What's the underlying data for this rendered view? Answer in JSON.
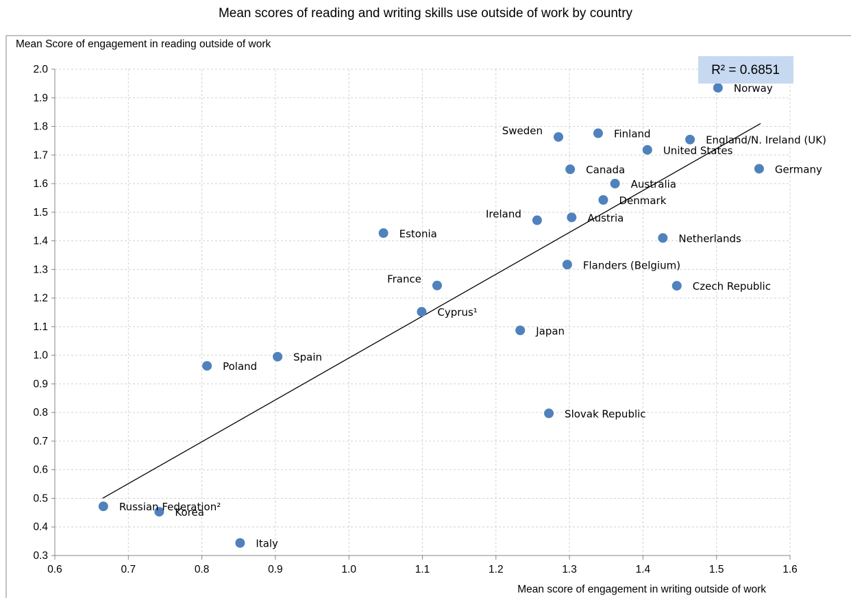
{
  "chart_data": {
    "type": "scatter",
    "title": "Mean scores of reading and writing skills use outside of work by country",
    "xlabel": "Mean score of engagement in  writing outside of work",
    "ylabel": "Mean Score of engagement in reading outside of work",
    "xlim": [
      0.6,
      1.6
    ],
    "ylim": [
      0.3,
      2.0
    ],
    "x_ticks": [
      "0.6",
      "0.7",
      "0.8",
      "0.9",
      "1.0",
      "1.1",
      "1.2",
      "1.3",
      "1.4",
      "1.5",
      "1.6"
    ],
    "y_ticks": [
      "0.3",
      "0.4",
      "0.5",
      "0.6",
      "0.7",
      "0.8",
      "0.9",
      "1.0",
      "1.1",
      "1.2",
      "1.3",
      "1.4",
      "1.5",
      "1.6",
      "1.7",
      "1.8",
      "1.9",
      "2.0"
    ],
    "grid": true,
    "point_color": "#4f81bd",
    "annotation": "R² = 0.6851",
    "trendline": {
      "x": [
        0.665,
        1.56
      ],
      "y": [
        0.5,
        1.81
      ]
    },
    "points": [
      {
        "label": "Norway",
        "x": 1.502,
        "y": 1.935,
        "label_pos": "right"
      },
      {
        "label": "Sweden",
        "x": 1.285,
        "y": 1.763,
        "label_pos": "left"
      },
      {
        "label": "Finland",
        "x": 1.339,
        "y": 1.776,
        "label_pos": "right"
      },
      {
        "label": "England/N. Ireland (UK)",
        "x": 1.464,
        "y": 1.754,
        "label_pos": "right"
      },
      {
        "label": "United States",
        "x": 1.406,
        "y": 1.718,
        "label_pos": "right"
      },
      {
        "label": "Canada",
        "x": 1.301,
        "y": 1.65,
        "label_pos": "right"
      },
      {
        "label": "Germany",
        "x": 1.558,
        "y": 1.652,
        "label_pos": "right"
      },
      {
        "label": "Australia",
        "x": 1.362,
        "y": 1.6,
        "label_pos": "right"
      },
      {
        "label": "Denmark",
        "x": 1.346,
        "y": 1.543,
        "label_pos": "right"
      },
      {
        "label": "Ireland",
        "x": 1.256,
        "y": 1.472,
        "label_pos": "left"
      },
      {
        "label": "Austria",
        "x": 1.303,
        "y": 1.482,
        "label_pos": "right"
      },
      {
        "label": "Estonia",
        "x": 1.047,
        "y": 1.427,
        "label_pos": "right"
      },
      {
        "label": "Netherlands",
        "x": 1.427,
        "y": 1.41,
        "label_pos": "right"
      },
      {
        "label": "Flanders (Belgium)",
        "x": 1.297,
        "y": 1.317,
        "label_pos": "right"
      },
      {
        "label": "France",
        "x": 1.12,
        "y": 1.244,
        "label_pos": "left"
      },
      {
        "label": "Czech Republic",
        "x": 1.446,
        "y": 1.243,
        "label_pos": "right"
      },
      {
        "label": "Cyprus¹",
        "x": 1.099,
        "y": 1.152,
        "label_pos": "right"
      },
      {
        "label": "Japan",
        "x": 1.233,
        "y": 1.087,
        "label_pos": "right"
      },
      {
        "label": "Spain",
        "x": 0.903,
        "y": 0.995,
        "label_pos": "right"
      },
      {
        "label": "Poland",
        "x": 0.807,
        "y": 0.963,
        "label_pos": "right"
      },
      {
        "label": "Slovak Republic",
        "x": 1.272,
        "y": 0.797,
        "label_pos": "right"
      },
      {
        "label": "Russian Federation²",
        "x": 0.666,
        "y": 0.472,
        "label_pos": "right"
      },
      {
        "label": "Korea",
        "x": 0.742,
        "y": 0.453,
        "label_pos": "right"
      },
      {
        "label": "Italy",
        "x": 0.852,
        "y": 0.344,
        "label_pos": "right"
      }
    ]
  }
}
